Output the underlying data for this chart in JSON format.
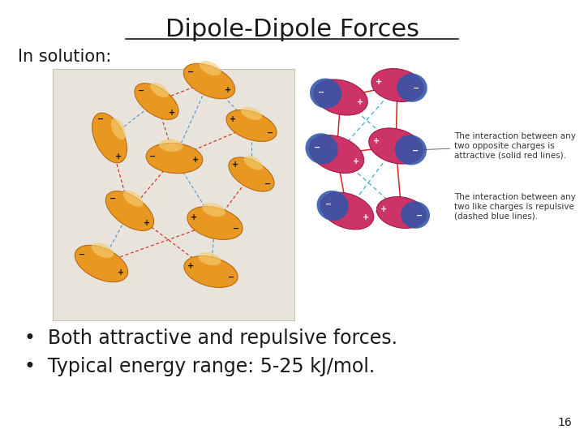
{
  "title": "Dipole-Dipole Forces",
  "subtitle": "In solution:",
  "bullet1": "Both attractive and repulsive forces.",
  "bullet2": "Typical energy range: 5-25 kJ/mol.",
  "page_number": "16",
  "bg_color": "#ffffff",
  "text_color": "#1a1a1a",
  "title_fontsize": 22,
  "subtitle_fontsize": 15,
  "bullet_fontsize": 17,
  "page_fontsize": 10,
  "orange_body": "#E89820",
  "orange_highlight": "#F5CC70",
  "orange_edge": "#B06010",
  "pink_color": "#CC3366",
  "blue_color": "#3355AA",
  "red_line_color": "#CC1100",
  "blue_line_color": "#4488CC",
  "annotation_fontsize": 7.5,
  "left_bg": "#E8E4DC",
  "left_bg_edge": "#C8C0B0"
}
